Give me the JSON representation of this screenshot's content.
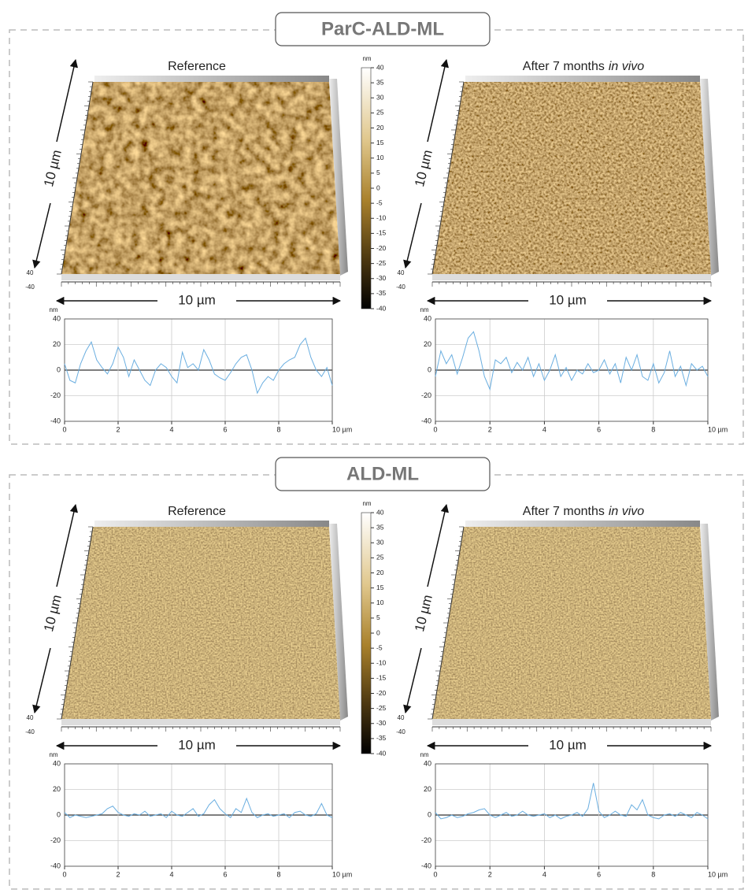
{
  "panels": [
    {
      "title": "ParC-ALD-ML",
      "colorbar": {
        "unit": "nm",
        "range": [
          -40,
          40
        ],
        "ticks": [
          40,
          35,
          30,
          25,
          20,
          15,
          10,
          5,
          0,
          -5,
          -10,
          -15,
          -20,
          -25,
          -30,
          -35,
          -40
        ]
      },
      "images": [
        {
          "label": "Reference",
          "y_size": "10 µm",
          "x_size": "10 µm",
          "z_top": "40",
          "z_bottom": "-40"
        },
        {
          "label": "After 7 months",
          "label_italic": "in vivo",
          "y_size": "10 µm",
          "x_size": "10 µm",
          "z_top": "40",
          "z_bottom": "-40"
        }
      ]
    },
    {
      "title": "ALD-ML",
      "colorbar": {
        "unit": "nm",
        "range": [
          -40,
          40
        ],
        "ticks": [
          40,
          35,
          30,
          25,
          20,
          15,
          10,
          5,
          0,
          -5,
          -10,
          -15,
          -20,
          -25,
          -30,
          -35,
          -40
        ]
      },
      "images": [
        {
          "label": "Reference",
          "y_size": "10 µm",
          "x_size": "10 µm",
          "z_top": "40",
          "z_bottom": "-40"
        },
        {
          "label": "After 7 months",
          "label_italic": "in vivo",
          "y_size": "10 µm",
          "x_size": "10 µm",
          "z_top": "40",
          "z_bottom": "-40"
        }
      ]
    }
  ],
  "chart_data": [
    {
      "type": "line",
      "y_label": "nm",
      "x": [
        0,
        0.2,
        0.4,
        0.6,
        0.8,
        1,
        1.2,
        1.4,
        1.6,
        1.8,
        2,
        2.2,
        2.4,
        2.6,
        2.8,
        3,
        3.2,
        3.4,
        3.6,
        3.8,
        4,
        4.2,
        4.4,
        4.6,
        4.8,
        5,
        5.2,
        5.4,
        5.6,
        5.8,
        6,
        6.2,
        6.4,
        6.6,
        6.8,
        7,
        7.2,
        7.4,
        7.6,
        7.8,
        8,
        8.2,
        8.4,
        8.6,
        8.8,
        9,
        9.2,
        9.4,
        9.6,
        9.8,
        10
      ],
      "series": [
        {
          "color": "#6aaee0",
          "values": [
            5,
            -8,
            -10,
            5,
            15,
            22,
            8,
            2,
            -3,
            5,
            18,
            10,
            -5,
            8,
            0,
            -8,
            -12,
            0,
            5,
            2,
            -5,
            -10,
            14,
            2,
            5,
            0,
            16,
            8,
            -3,
            -6,
            -8,
            -2,
            5,
            10,
            12,
            0,
            -18,
            -10,
            -5,
            -8,
            0,
            5,
            8,
            10,
            20,
            25,
            10,
            0,
            -5,
            2,
            -12
          ]
        }
      ],
      "xlim": [
        0,
        10
      ],
      "ylim": [
        -40,
        40
      ],
      "xticks": [
        0,
        2,
        4,
        6,
        8,
        {
          "value": 10,
          "label": "10 µm"
        }
      ],
      "yticks": [
        -40,
        -20,
        0,
        20,
        40
      ],
      "grid": true
    },
    {
      "type": "line",
      "y_label": "nm",
      "x": [
        0,
        0.2,
        0.4,
        0.6,
        0.8,
        1,
        1.2,
        1.4,
        1.6,
        1.8,
        2,
        2.2,
        2.4,
        2.6,
        2.8,
        3,
        3.2,
        3.4,
        3.6,
        3.8,
        4,
        4.2,
        4.4,
        4.6,
        4.8,
        5,
        5.2,
        5.4,
        5.6,
        5.8,
        6,
        6.2,
        6.4,
        6.6,
        6.8,
        7,
        7.2,
        7.4,
        7.6,
        7.8,
        8,
        8.2,
        8.4,
        8.6,
        8.8,
        9,
        9.2,
        9.4,
        9.6,
        9.8,
        10
      ],
      "series": [
        {
          "color": "#6aaee0",
          "values": [
            -5,
            15,
            5,
            12,
            -3,
            10,
            25,
            30,
            15,
            -5,
            -15,
            8,
            5,
            10,
            -2,
            6,
            0,
            10,
            -5,
            5,
            -8,
            0,
            12,
            -5,
            2,
            -8,
            0,
            -3,
            5,
            -2,
            0,
            8,
            -3,
            5,
            -10,
            10,
            0,
            12,
            -5,
            -8,
            5,
            -10,
            -2,
            15,
            -5,
            3,
            -12,
            5,
            0,
            3,
            -5
          ]
        }
      ],
      "xlim": [
        0,
        10
      ],
      "ylim": [
        -40,
        40
      ],
      "xticks": [
        0,
        2,
        4,
        6,
        8,
        {
          "value": 10,
          "label": "10 µm"
        }
      ],
      "yticks": [
        -40,
        -20,
        0,
        20,
        40
      ],
      "grid": true
    },
    {
      "type": "line",
      "y_label": "nm",
      "x": [
        0,
        0.2,
        0.4,
        0.6,
        0.8,
        1,
        1.2,
        1.4,
        1.6,
        1.8,
        2,
        2.2,
        2.4,
        2.6,
        2.8,
        3,
        3.2,
        3.4,
        3.6,
        3.8,
        4,
        4.2,
        4.4,
        4.6,
        4.8,
        5,
        5.2,
        5.4,
        5.6,
        5.8,
        6,
        6.2,
        6.4,
        6.6,
        6.8,
        7,
        7.2,
        7.4,
        7.6,
        7.8,
        8,
        8.2,
        8.4,
        8.6,
        8.8,
        9,
        9.2,
        9.4,
        9.6,
        9.8,
        10
      ],
      "series": [
        {
          "color": "#6aaee0",
          "values": [
            2,
            -2,
            0,
            -1,
            -2,
            -1,
            0,
            1,
            5,
            7,
            2,
            0,
            -1,
            1,
            0,
            3,
            -1,
            0,
            1,
            -2,
            3,
            0,
            -1,
            2,
            5,
            -1,
            1,
            8,
            12,
            5,
            1,
            -2,
            5,
            2,
            13,
            2,
            -2,
            0,
            1,
            -1,
            0,
            1,
            -2,
            2,
            3,
            0,
            -1,
            1,
            9,
            0,
            -2
          ]
        }
      ],
      "xlim": [
        0,
        10
      ],
      "ylim": [
        -40,
        40
      ],
      "xticks": [
        0,
        2,
        4,
        6,
        8,
        {
          "value": 10,
          "label": "10 µm"
        }
      ],
      "yticks": [
        -40,
        -20,
        0,
        20,
        40
      ],
      "grid": true
    },
    {
      "type": "line",
      "y_label": "nm",
      "x": [
        0,
        0.2,
        0.4,
        0.6,
        0.8,
        1,
        1.2,
        1.4,
        1.6,
        1.8,
        2,
        2.2,
        2.4,
        2.6,
        2.8,
        3,
        3.2,
        3.4,
        3.6,
        3.8,
        4,
        4.2,
        4.4,
        4.6,
        4.8,
        5,
        5.2,
        5.4,
        5.6,
        5.8,
        6,
        6.2,
        6.4,
        6.6,
        6.8,
        7,
        7.2,
        7.4,
        7.6,
        7.8,
        8,
        8.2,
        8.4,
        8.6,
        8.8,
        9,
        9.2,
        9.4,
        9.6,
        9.8,
        10
      ],
      "series": [
        {
          "color": "#6aaee0",
          "values": [
            2,
            -3,
            -2,
            0,
            -2,
            -1,
            1,
            2,
            4,
            5,
            0,
            -2,
            0,
            2,
            -1,
            0,
            3,
            0,
            -1,
            0,
            1,
            -2,
            0,
            -3,
            -1,
            0,
            2,
            -1,
            5,
            25,
            3,
            -2,
            0,
            3,
            0,
            -1,
            8,
            4,
            12,
            0,
            -2,
            -3,
            0,
            1,
            -1,
            2,
            0,
            -2,
            2,
            0,
            -3
          ]
        }
      ],
      "xlim": [
        0,
        10
      ],
      "ylim": [
        -40,
        40
      ],
      "xticks": [
        0,
        2,
        4,
        6,
        8,
        {
          "value": 10,
          "label": "10 µm"
        }
      ],
      "yticks": [
        -40,
        -20,
        0,
        20,
        40
      ],
      "grid": true
    }
  ]
}
